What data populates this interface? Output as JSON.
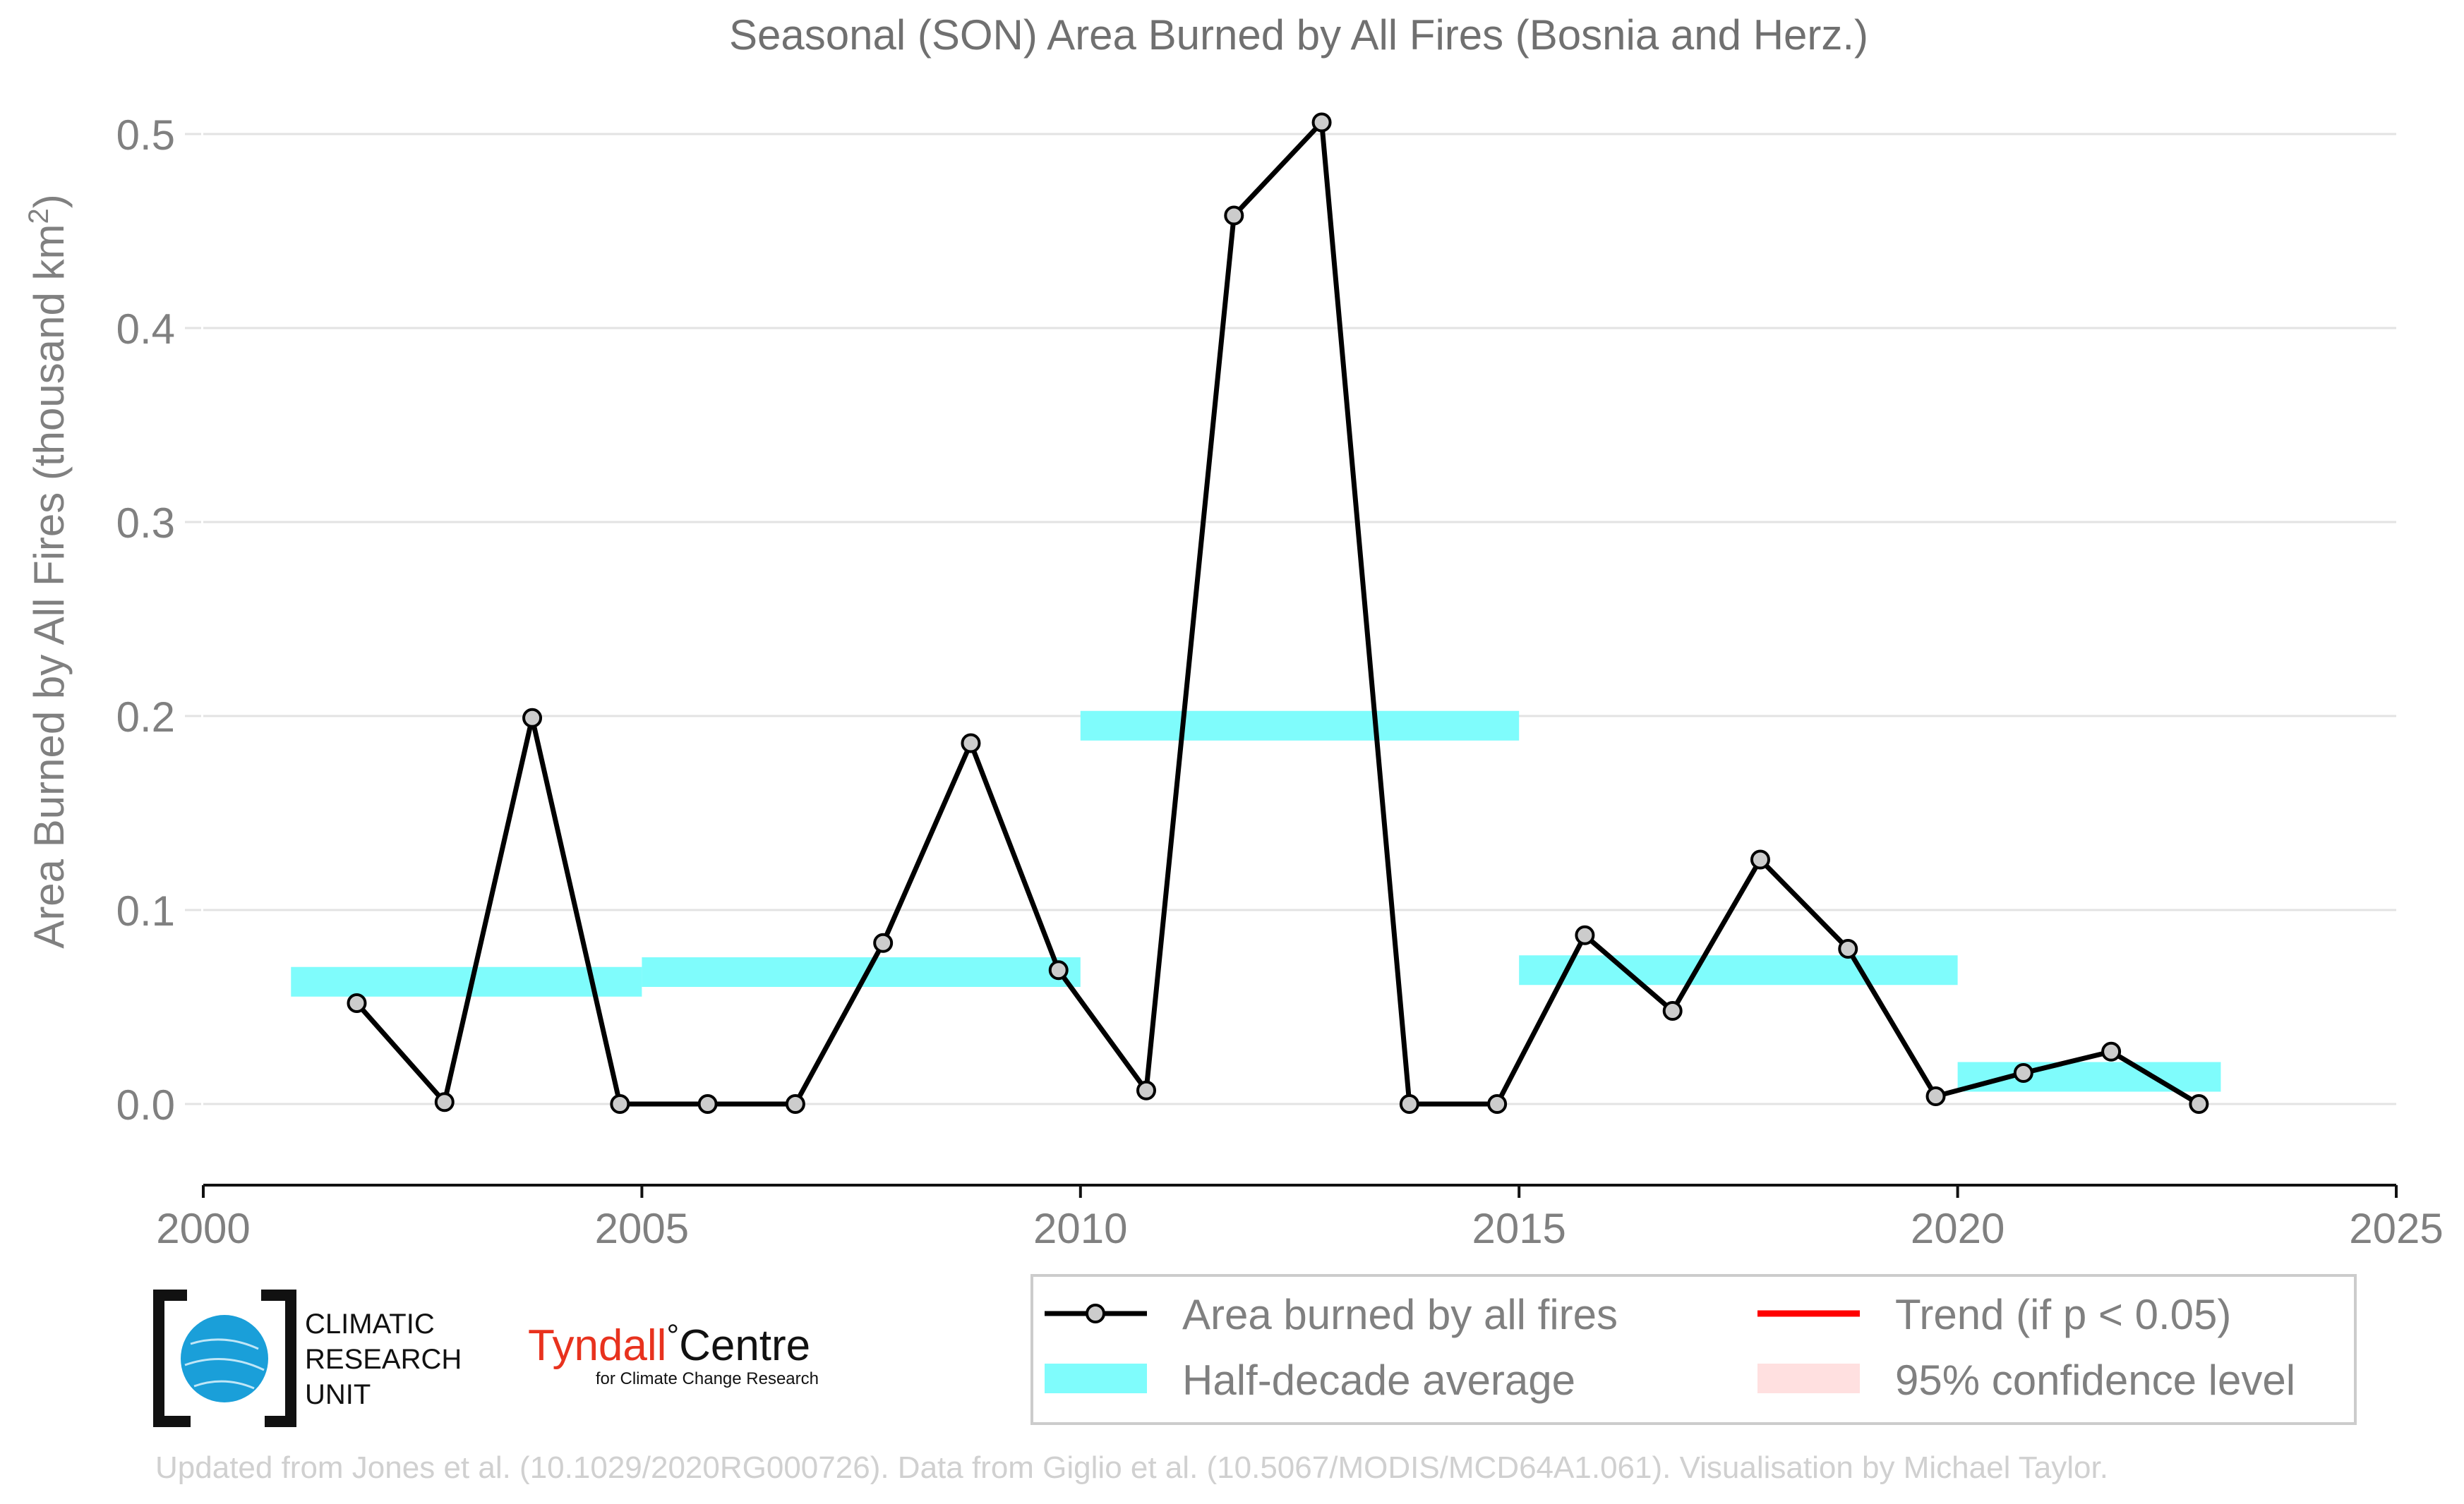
{
  "chart_data": {
    "type": "line",
    "title": "Seasonal (SON) Area Burned by All Fires (Bosnia and Herz.)",
    "ylabel_main": "Area Burned by All Fires (thousand km",
    "ylabel_sup": "2",
    "ylabel_close": ")",
    "xlim": [
      2000,
      2025
    ],
    "ylim": [
      -0.04,
      0.52
    ],
    "x_ticks": [
      2000,
      2005,
      2010,
      2015,
      2020,
      2025
    ],
    "y_ticks": [
      0.0,
      0.1,
      0.2,
      0.3,
      0.4,
      0.5
    ],
    "y_tick_labels": [
      "0.0",
      "0.1",
      "0.2",
      "0.3",
      "0.4",
      "0.5"
    ],
    "grid": "horizontal",
    "legend_position": "bottom-right, below plot",
    "series": [
      {
        "name": "Area burned by all fires",
        "color": "#000000",
        "marker_fill": "#cccccc",
        "x": [
          2001.75,
          2002.75,
          2003.75,
          2004.75,
          2005.75,
          2006.75,
          2007.75,
          2008.75,
          2009.75,
          2010.75,
          2011.75,
          2012.75,
          2013.75,
          2014.75,
          2015.75,
          2016.75,
          2017.75,
          2018.75,
          2019.75,
          2020.75,
          2021.75,
          2022.75
        ],
        "y": [
          0.052,
          0.001,
          0.199,
          0.0,
          0.0,
          0.0,
          0.083,
          0.186,
          0.069,
          0.007,
          0.458,
          0.506,
          0.0,
          0.0,
          0.087,
          0.048,
          0.126,
          0.08,
          0.004,
          0.016,
          0.027,
          0.0
        ]
      }
    ],
    "half_decade_average": {
      "name": "Half-decade average",
      "color": "#7ffcfc",
      "segments": [
        {
          "x0": 2001.0,
          "x1": 2005.0,
          "y": 0.063
        },
        {
          "x0": 2005.0,
          "x1": 2010.0,
          "y": 0.068
        },
        {
          "x0": 2010.0,
          "x1": 2015.0,
          "y": 0.195
        },
        {
          "x0": 2015.0,
          "x1": 2020.0,
          "y": 0.069
        },
        {
          "x0": 2020.0,
          "x1": 2023.0,
          "y": 0.014
        }
      ]
    },
    "legend": [
      {
        "label": "Area burned by all fires",
        "kind": "line-marker",
        "color": "#000000"
      },
      {
        "label": "Trend (if p < 0.05)",
        "kind": "line",
        "color": "#ff0000"
      },
      {
        "label": "Half-decade average",
        "kind": "band",
        "color": "#7ffcfc"
      },
      {
        "label": "95% confidence level",
        "kind": "band",
        "color": "#ffe0e0"
      }
    ]
  },
  "logos": {
    "cru_line1": "CLIMATIC",
    "cru_line2": "RESEARCH",
    "cru_line3": "UNIT",
    "tyndall_main": "Tyndall",
    "tyndall_degree": "°",
    "tyndall_centre": "Centre",
    "tyndall_sub": "for Climate Change Research",
    "tyndall_color": "#e8321e",
    "cru_globe_color": "#1a9fd9"
  },
  "footer": "Updated from Jones et al. (10.1029/2020RG000726). Data from Giglio et al. (10.5067/MODIS/MCD64A1.061). Visualisation by Michael Taylor."
}
